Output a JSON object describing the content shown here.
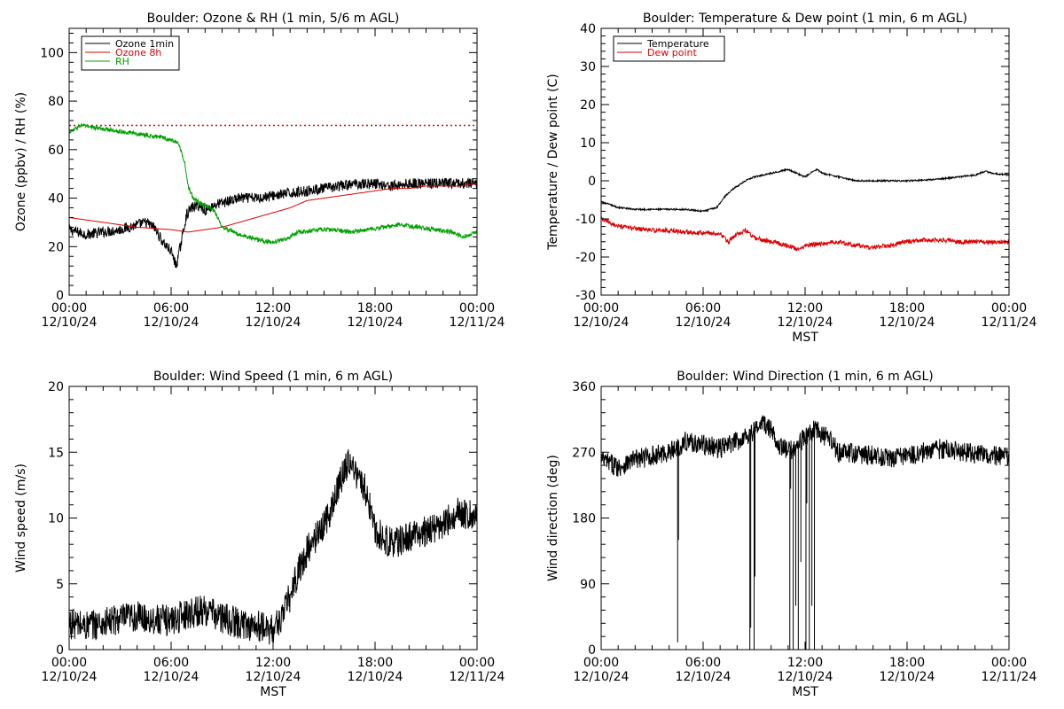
{
  "chart_data": [
    {
      "id": "ozone_rh",
      "type": "line",
      "title": "Boulder: Ozone & RH (1 min, 5/6 m AGL)",
      "xlabel": "",
      "ylabel": "Ozone (ppbv) / RH (%)",
      "x_ticks": [
        [
          "00:00",
          "12/10/24"
        ],
        [
          "06:00",
          "12/10/24"
        ],
        [
          "12:00",
          "12/10/24"
        ],
        [
          "18:00",
          "12/10/24"
        ],
        [
          "00:00",
          "12/11/24"
        ]
      ],
      "xlim": [
        0,
        24
      ],
      "ylim": [
        0,
        110
      ],
      "y_ticks": [
        0,
        20,
        40,
        60,
        80,
        100
      ],
      "legend": "top-left",
      "reference_line": {
        "y": 70,
        "color": "#dd0000",
        "style": "dotted"
      },
      "series": [
        {
          "name": "Ozone 1min",
          "color": "#000000",
          "noise": 2.2,
          "x": [
            0,
            0.5,
            1,
            2,
            3,
            4,
            4.5,
            5,
            5.5,
            6,
            6.3,
            6.6,
            6.9,
            7.2,
            7.6,
            8,
            8.5,
            9,
            10,
            11,
            12,
            13,
            14,
            15,
            16,
            17,
            18,
            19,
            20,
            21,
            22,
            23,
            24
          ],
          "y": [
            27,
            26,
            25,
            26,
            27,
            29,
            30,
            28,
            22,
            18,
            12,
            22,
            33,
            36,
            37,
            35,
            37,
            38,
            40,
            40,
            41,
            42,
            43,
            44,
            45,
            46,
            46,
            45,
            46,
            46,
            46,
            46,
            46
          ]
        },
        {
          "name": "Ozone 8h",
          "color": "#dd0000",
          "noise": 0,
          "x": [
            0,
            2,
            4,
            6,
            7,
            8,
            9,
            10,
            11,
            12,
            13,
            14,
            15,
            16,
            17,
            18,
            19,
            20,
            21,
            22,
            23,
            24
          ],
          "y": [
            32,
            30,
            28,
            27,
            26,
            27,
            28,
            30,
            32,
            34,
            36,
            39,
            40,
            41,
            42,
            43,
            44,
            44,
            45,
            45,
            45,
            46
          ]
        },
        {
          "name": "RH",
          "color": "#00a000",
          "noise": 0.9,
          "x": [
            0,
            0.7,
            1.5,
            2.5,
            3.5,
            4.5,
            5.5,
            6.4,
            6.8,
            7.0,
            7.3,
            7.7,
            8.0,
            8.3,
            8.6,
            9.0,
            10,
            10.5,
            11,
            11.5,
            12,
            12.7,
            13.5,
            14.5,
            15.5,
            16.5,
            17.5,
            18.5,
            19.5,
            20.5,
            21.5,
            22.5,
            23.2,
            24
          ],
          "y": [
            67,
            70,
            69,
            68,
            67,
            66,
            65,
            63,
            55,
            45,
            40,
            38,
            37,
            36,
            34,
            28,
            25,
            24,
            23,
            22,
            22,
            23,
            26,
            27,
            27,
            26,
            27,
            28,
            29,
            28,
            27,
            26,
            24,
            26
          ]
        }
      ]
    },
    {
      "id": "temp_dew",
      "type": "line",
      "title": "Boulder: Temperature & Dew point (1 min, 6 m AGL)",
      "xlabel": "MST",
      "ylabel": "Temperature / Dew point (C)",
      "x_ticks": [
        [
          "00:00",
          "12/10/24"
        ],
        [
          "06:00",
          "12/10/24"
        ],
        [
          "12:00",
          "12/10/24"
        ],
        [
          "18:00",
          "12/10/24"
        ],
        [
          "00:00",
          "12/11/24"
        ]
      ],
      "xlim": [
        0,
        24
      ],
      "ylim": [
        -30,
        40
      ],
      "y_ticks": [
        -30,
        -20,
        -10,
        0,
        10,
        20,
        30,
        40
      ],
      "legend": "top-left",
      "series": [
        {
          "name": "Temperature",
          "color": "#000000",
          "noise": 0.2,
          "x": [
            0,
            1,
            2,
            3,
            4,
            5,
            6,
            6.8,
            7.3,
            7.8,
            8.5,
            9,
            10,
            10.5,
            11,
            11.5,
            12,
            12.3,
            12.7,
            13,
            14,
            15,
            16,
            17,
            18,
            19,
            20,
            21,
            22,
            22.6,
            23,
            24
          ],
          "y": [
            -5.5,
            -7,
            -7.5,
            -7.5,
            -7.5,
            -7.5,
            -8,
            -7,
            -4,
            -2,
            0,
            1,
            2,
            2.5,
            3,
            2,
            1,
            2,
            3,
            2,
            1,
            0,
            0,
            0,
            0,
            0.2,
            0.5,
            1,
            1.5,
            2.5,
            2,
            1.5
          ]
        },
        {
          "name": "Dew point",
          "color": "#dd0000",
          "noise": 0.6,
          "x": [
            0,
            1,
            2,
            3,
            4,
            5,
            6,
            7,
            7.5,
            8,
            8.5,
            9,
            10,
            11,
            11.5,
            12,
            13,
            14,
            15,
            16,
            17,
            18,
            19,
            20,
            21,
            22,
            23,
            24
          ],
          "y": [
            -10,
            -12,
            -12.5,
            -13,
            -13,
            -13.5,
            -13.5,
            -14,
            -16,
            -14,
            -13,
            -15,
            -16,
            -17,
            -18,
            -17,
            -16.5,
            -16,
            -17,
            -17.5,
            -17,
            -16,
            -15.5,
            -15.5,
            -16,
            -16,
            -16,
            -16
          ]
        }
      ]
    },
    {
      "id": "wind_speed",
      "type": "line",
      "title": "Boulder: Wind Speed (1 min, 6 m AGL)",
      "xlabel": "MST",
      "ylabel": "Wind speed (m/s)",
      "x_ticks": [
        [
          "00:00",
          "12/10/24"
        ],
        [
          "06:00",
          "12/10/24"
        ],
        [
          "12:00",
          "12/10/24"
        ],
        [
          "18:00",
          "12/10/24"
        ],
        [
          "00:00",
          "12/11/24"
        ]
      ],
      "xlim": [
        0,
        24
      ],
      "ylim": [
        0,
        20
      ],
      "y_ticks": [
        0,
        5,
        10,
        15,
        20
      ],
      "legend": "none",
      "series": [
        {
          "name": "",
          "color": "#000000",
          "noise": 1.2,
          "x": [
            0,
            1,
            2,
            3,
            4,
            5,
            6,
            7,
            8,
            9,
            10,
            11,
            12,
            12.5,
            13,
            13.5,
            14,
            14.5,
            15,
            15.5,
            16,
            16.5,
            17,
            17.5,
            18,
            19,
            20,
            21,
            22,
            23,
            24
          ],
          "y": [
            2,
            1.8,
            2,
            2.3,
            2.5,
            2.3,
            2.2,
            2.8,
            3,
            2.4,
            2,
            1.8,
            1.5,
            2.5,
            4,
            6,
            7.5,
            8.5,
            9.5,
            11,
            13,
            14.5,
            13,
            12,
            9,
            8,
            8.5,
            9,
            9.5,
            10.5,
            10
          ]
        }
      ]
    },
    {
      "id": "wind_dir",
      "type": "line",
      "title": "Boulder: Wind Direction (1 min, 6 m AGL)",
      "xlabel": "MST",
      "ylabel": "Wind direction (deg)",
      "x_ticks": [
        [
          "00:00",
          "12/10/24"
        ],
        [
          "06:00",
          "12/10/24"
        ],
        [
          "12:00",
          "12/10/24"
        ],
        [
          "18:00",
          "12/10/24"
        ],
        [
          "00:00",
          "12/11/24"
        ]
      ],
      "xlim": [
        0,
        24
      ],
      "ylim": [
        0,
        360
      ],
      "y_ticks": [
        0,
        90,
        180,
        270,
        360
      ],
      "legend": "none",
      "series": [
        {
          "name": "",
          "color": "#000000",
          "noise": 14,
          "x": [
            0,
            1,
            2,
            3,
            4,
            5,
            6,
            7,
            8,
            9,
            9.5,
            10,
            10.5,
            11,
            11.5,
            12,
            12.5,
            13,
            13.5,
            14,
            15,
            16,
            17,
            18,
            19,
            20,
            21,
            22,
            23,
            24
          ],
          "y": [
            260,
            250,
            260,
            265,
            270,
            285,
            280,
            275,
            285,
            300,
            310,
            300,
            280,
            270,
            280,
            290,
            300,
            295,
            285,
            270,
            268,
            265,
            262,
            265,
            270,
            275,
            272,
            268,
            265,
            262
          ]
        }
      ],
      "dropouts": [
        {
          "x": 4.5,
          "y": 10
        },
        {
          "x": 4.55,
          "y": 150
        },
        {
          "x": 8.75,
          "y": 0
        },
        {
          "x": 8.8,
          "y": 30
        },
        {
          "x": 9.0,
          "y": 0
        },
        {
          "x": 9.05,
          "y": 100
        },
        {
          "x": 11.1,
          "y": 0
        },
        {
          "x": 11.15,
          "y": 220
        },
        {
          "x": 11.3,
          "y": 0
        },
        {
          "x": 11.45,
          "y": 60
        },
        {
          "x": 11.6,
          "y": 0
        },
        {
          "x": 11.75,
          "y": 120
        },
        {
          "x": 12.05,
          "y": 0
        },
        {
          "x": 12.1,
          "y": 200
        },
        {
          "x": 12.25,
          "y": 0
        },
        {
          "x": 12.4,
          "y": 60
        },
        {
          "x": 12.55,
          "y": 0
        }
      ]
    }
  ]
}
